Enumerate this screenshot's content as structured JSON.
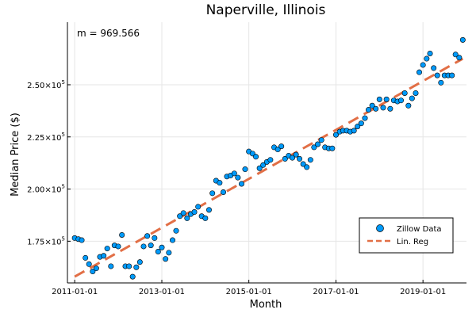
{
  "chart_data": {
    "type": "scatter",
    "title": "Naperville, Illinois",
    "xlabel": "Month",
    "ylabel": "Median Price ($)",
    "annotation": "m = 969.566",
    "xlim": [
      "2010-11-01",
      "2020-01-01"
    ],
    "ylim": [
      155000,
      280000
    ],
    "x_ticks": [
      "2011-01-01",
      "2013-01-01",
      "2015-01-01",
      "2017-01-01",
      "2019-01-01"
    ],
    "y_ticks": [
      {
        "value": 175000,
        "label": "1.75×10",
        "exp": "5"
      },
      {
        "value": 200000,
        "label": "2.00×10",
        "exp": "5"
      },
      {
        "value": 225000,
        "label": "2.25×10",
        "exp": "5"
      },
      {
        "value": 250000,
        "label": "2.50×10",
        "exp": "5"
      }
    ],
    "grid": true,
    "legend_position": "bottom-right",
    "series": [
      {
        "name": "Zillow Data",
        "kind": "scatter",
        "color": "#009AFA",
        "points": [
          [
            "2011-01-01",
            176500
          ],
          [
            "2011-02-01",
            176000
          ],
          [
            "2011-03-01",
            175500
          ],
          [
            "2011-04-01",
            167000
          ],
          [
            "2011-05-01",
            164000
          ],
          [
            "2011-06-01",
            160500
          ],
          [
            "2011-07-01",
            162000
          ],
          [
            "2011-08-01",
            167500
          ],
          [
            "2011-09-01",
            168000
          ],
          [
            "2011-10-01",
            171500
          ],
          [
            "2011-11-01",
            163000
          ],
          [
            "2011-12-01",
            173000
          ],
          [
            "2012-01-01",
            172500
          ],
          [
            "2012-02-01",
            178000
          ],
          [
            "2012-03-01",
            163000
          ],
          [
            "2012-04-01",
            163000
          ],
          [
            "2012-05-01",
            158000
          ],
          [
            "2012-06-01",
            162500
          ],
          [
            "2012-07-01",
            165000
          ],
          [
            "2012-08-01",
            172500
          ],
          [
            "2012-09-01",
            177500
          ],
          [
            "2012-10-01",
            173000
          ],
          [
            "2012-11-01",
            176500
          ],
          [
            "2012-12-01",
            170000
          ],
          [
            "2013-01-01",
            172000
          ],
          [
            "2013-02-01",
            166500
          ],
          [
            "2013-03-01",
            169500
          ],
          [
            "2013-04-01",
            175500
          ],
          [
            "2013-05-01",
            180000
          ],
          [
            "2013-06-01",
            187000
          ],
          [
            "2013-07-01",
            188500
          ],
          [
            "2013-08-01",
            186000
          ],
          [
            "2013-09-01",
            188000
          ],
          [
            "2013-10-01",
            189000
          ],
          [
            "2013-11-01",
            191500
          ],
          [
            "2013-12-01",
            187000
          ],
          [
            "2014-01-01",
            186000
          ],
          [
            "2014-02-01",
            190000
          ],
          [
            "2014-03-01",
            198000
          ],
          [
            "2014-04-01",
            204000
          ],
          [
            "2014-05-01",
            203000
          ],
          [
            "2014-06-01",
            198500
          ],
          [
            "2014-07-01",
            206000
          ],
          [
            "2014-08-01",
            206500
          ],
          [
            "2014-09-01",
            207500
          ],
          [
            "2014-10-01",
            205500
          ],
          [
            "2014-11-01",
            202500
          ],
          [
            "2014-12-01",
            209500
          ],
          [
            "2015-01-01",
            218000
          ],
          [
            "2015-02-01",
            217000
          ],
          [
            "2015-03-01",
            215500
          ],
          [
            "2015-04-01",
            210000
          ],
          [
            "2015-05-01",
            211500
          ],
          [
            "2015-06-01",
            213000
          ],
          [
            "2015-07-01",
            214000
          ],
          [
            "2015-08-01",
            220000
          ],
          [
            "2015-09-01",
            219000
          ],
          [
            "2015-10-01",
            220500
          ],
          [
            "2015-11-01",
            214500
          ],
          [
            "2015-12-01",
            216000
          ],
          [
            "2016-01-01",
            215000
          ],
          [
            "2016-02-01",
            216500
          ],
          [
            "2016-03-01",
            214500
          ],
          [
            "2016-04-01",
            212000
          ],
          [
            "2016-05-01",
            210500
          ],
          [
            "2016-06-01",
            214000
          ],
          [
            "2016-07-01",
            220000
          ],
          [
            "2016-08-01",
            221500
          ],
          [
            "2016-09-01",
            223500
          ],
          [
            "2016-10-01",
            220000
          ],
          [
            "2016-11-01",
            219500
          ],
          [
            "2016-12-01",
            219500
          ],
          [
            "2017-01-01",
            226000
          ],
          [
            "2017-02-01",
            227500
          ],
          [
            "2017-03-01",
            228000
          ],
          [
            "2017-04-01",
            228000
          ],
          [
            "2017-05-01",
            227500
          ],
          [
            "2017-06-01",
            228000
          ],
          [
            "2017-07-01",
            230000
          ],
          [
            "2017-08-01",
            231500
          ],
          [
            "2017-09-01",
            234000
          ],
          [
            "2017-10-01",
            238000
          ],
          [
            "2017-11-01",
            240000
          ],
          [
            "2017-12-01",
            238500
          ],
          [
            "2018-01-01",
            243000
          ],
          [
            "2018-02-01",
            239000
          ],
          [
            "2018-03-01",
            243000
          ],
          [
            "2018-04-01",
            238500
          ],
          [
            "2018-05-01",
            242500
          ],
          [
            "2018-06-01",
            242000
          ],
          [
            "2018-07-01",
            242500
          ],
          [
            "2018-08-01",
            246000
          ],
          [
            "2018-09-01",
            240000
          ],
          [
            "2018-10-01",
            243500
          ],
          [
            "2018-11-01",
            246000
          ],
          [
            "2018-12-01",
            256000
          ],
          [
            "2019-01-01",
            259500
          ],
          [
            "2019-02-01",
            262500
          ],
          [
            "2019-03-01",
            265000
          ],
          [
            "2019-04-01",
            258000
          ],
          [
            "2019-05-01",
            254500
          ],
          [
            "2019-06-01",
            251000
          ],
          [
            "2019-07-01",
            254500
          ],
          [
            "2019-08-01",
            254500
          ],
          [
            "2019-09-01",
            254500
          ],
          [
            "2019-10-01",
            264500
          ],
          [
            "2019-11-01",
            263000
          ],
          [
            "2019-12-01",
            271500
          ]
        ]
      },
      {
        "name": "Lin. Reg",
        "kind": "line",
        "style": "dashed",
        "color": "#E26F46",
        "points": [
          [
            "2011-01-01",
            158000
          ],
          [
            "2019-12-01",
            262500
          ]
        ]
      }
    ]
  }
}
